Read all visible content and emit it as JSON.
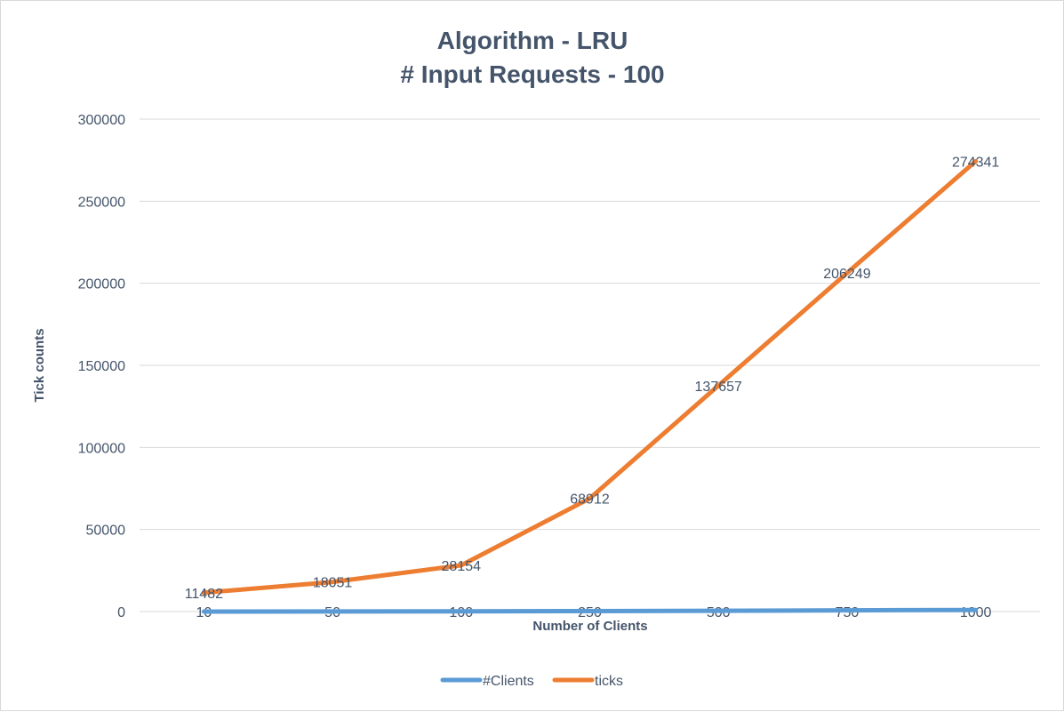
{
  "chart_data": {
    "type": "line",
    "title": [
      "Algorithm - LRU",
      "# Input Requests - 100"
    ],
    "xlabel": "Number of Clients",
    "ylabel": "Tick counts",
    "categories": [
      "10",
      "50",
      "100",
      "250",
      "500",
      "750",
      "1000"
    ],
    "ylim": [
      0,
      300000
    ],
    "yticks": [
      "0",
      "50000",
      "100000",
      "150000",
      "200000",
      "250000",
      "300000"
    ],
    "grid": true,
    "legend_position": "bottom",
    "series": [
      {
        "name": "#Clients",
        "values": [
          10,
          50,
          100,
          250,
          500,
          750,
          1000
        ],
        "color": "#5b9bd5",
        "show_labels": false
      },
      {
        "name": "ticks",
        "values": [
          11482,
          18051,
          28154,
          68912,
          137657,
          206249,
          274341
        ],
        "color": "#ed7d31",
        "show_labels": true
      }
    ]
  }
}
